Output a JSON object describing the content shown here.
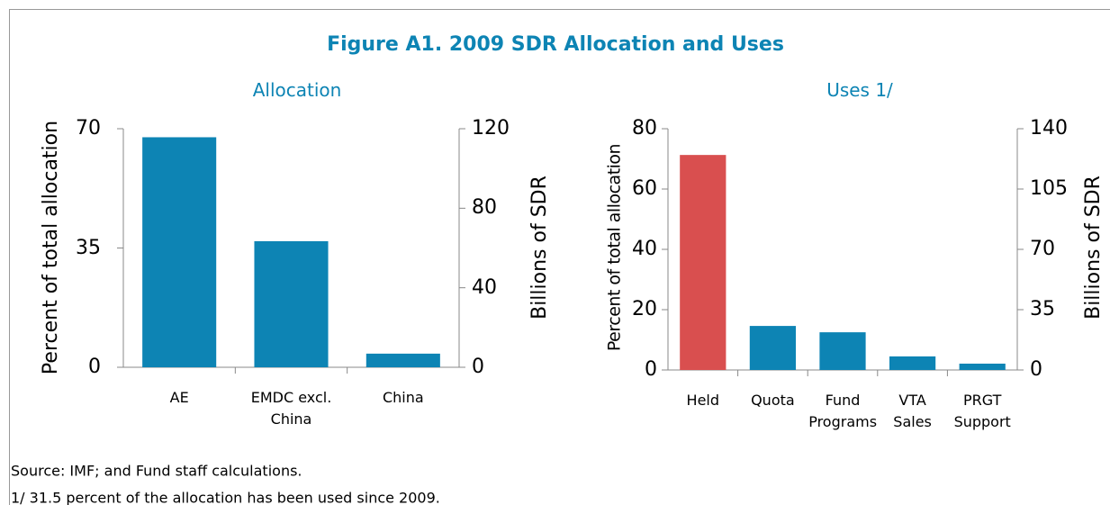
{
  "title": "Figure A1. 2009 SDR Allocation and Uses",
  "notes": [
    "Source: IMF; and Fund staff calculations.",
    "1/ 31.5 percent of the allocation has been used since 2009."
  ],
  "chart_data": [
    {
      "type": "bar",
      "title": "Allocation",
      "categories": [
        "AE",
        "EMDC excl. China",
        "China"
      ],
      "values": [
        67.5,
        37,
        4
      ],
      "colors": [
        "#0d84b4",
        "#0d84b4",
        "#0d84b4"
      ],
      "ylabel": "Percent of total allocation",
      "y2label": "Billions of SDR",
      "ylim": [
        0,
        70
      ],
      "yticks": [
        0,
        35,
        70
      ],
      "y2lim": [
        0,
        120
      ],
      "y2ticks": [
        0,
        40,
        80,
        120
      ]
    },
    {
      "type": "bar",
      "title": "Uses 1/",
      "categories": [
        "Held",
        "Quota",
        "Fund Programs",
        "VTA Sales",
        "PRGT Support"
      ],
      "values": [
        71.3,
        14.6,
        12.5,
        4.5,
        2.1
      ],
      "colors": [
        "#d94f4f",
        "#0d84b4",
        "#0d84b4",
        "#0d84b4",
        "#0d84b4"
      ],
      "ylabel": "Percent of total allocation",
      "y2label": "Billions of SDR",
      "ylim": [
        0,
        80
      ],
      "yticks": [
        0,
        20,
        40,
        60,
        80
      ],
      "y2lim": [
        0,
        140
      ],
      "y2ticks": [
        0,
        35,
        70,
        105,
        140
      ]
    }
  ]
}
